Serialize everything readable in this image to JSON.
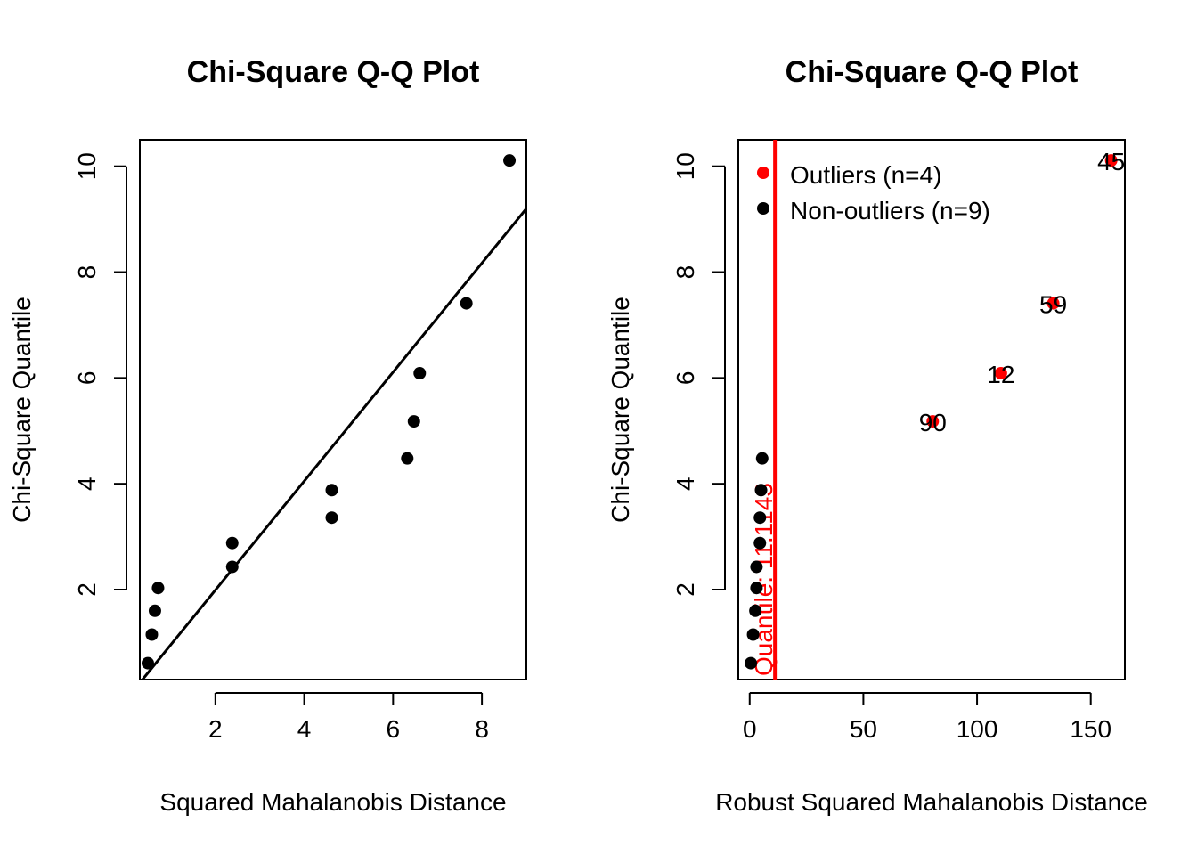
{
  "colors": {
    "outlier": "#ff0000",
    "normal": "#000000",
    "cutoff": "#ff0000",
    "line": "#000000"
  },
  "chart_data": [
    {
      "type": "scatter",
      "title": "Chi-Square Q-Q Plot",
      "xlabel": "Squared Mahalanobis Distance",
      "ylabel": "Chi-Square Quantile",
      "xlim": [
        0.3,
        9.0
      ],
      "ylim": [
        0.3,
        10.5
      ],
      "xticks": [
        2,
        4,
        6,
        8
      ],
      "yticks": [
        2,
        4,
        6,
        8,
        10
      ],
      "x": [
        0.48,
        0.57,
        0.64,
        0.71,
        2.38,
        2.38,
        4.62,
        4.62,
        6.32,
        6.47,
        6.6,
        7.65,
        8.62
      ],
      "y": [
        0.61,
        1.15,
        1.6,
        2.03,
        2.43,
        2.88,
        3.36,
        3.88,
        4.48,
        5.18,
        6.09,
        7.41,
        10.11
      ],
      "reference_line": {
        "intercept": -0.07,
        "slope": 1.03
      }
    },
    {
      "type": "scatter",
      "title": "Chi-Square Q-Q Plot",
      "xlabel": "Robust Squared Mahalanobis Distance",
      "ylabel": "Chi-Square Quantile",
      "xlim": [
        -5,
        165
      ],
      "ylim": [
        0.3,
        10.5
      ],
      "xticks": [
        0,
        50,
        100,
        150
      ],
      "yticks": [
        2,
        4,
        6,
        8,
        10
      ],
      "legend": {
        "position": "top-left",
        "entries": [
          "Outliers (n=4)",
          "Non-outliers (n=9)"
        ]
      },
      "non_outliers": {
        "x": [
          0.5,
          1.5,
          2.5,
          3.0,
          3.0,
          4.5,
          4.5,
          5.0,
          5.5
        ],
        "y": [
          0.61,
          1.15,
          1.6,
          2.03,
          2.43,
          2.88,
          3.36,
          3.88,
          4.48
        ]
      },
      "outliers": {
        "x": [
          80.5,
          110.5,
          133.5,
          159.0
        ],
        "y": [
          5.18,
          6.09,
          7.41,
          10.11
        ],
        "labels": [
          "90",
          "12",
          "59",
          "45"
        ]
      },
      "cutoff": {
        "x": 11.1143,
        "label": "Quantile: 11.1143"
      }
    }
  ]
}
